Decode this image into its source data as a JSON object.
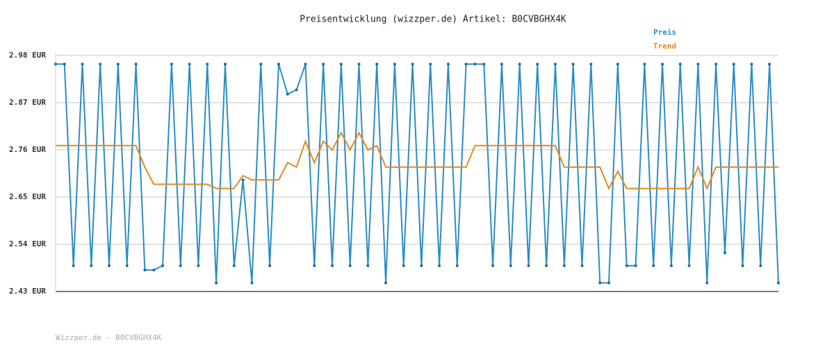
{
  "chart_data": {
    "type": "line",
    "title": "Preisentwicklung (wizzper.de) Artikel: B0CVBGHX4K",
    "footer": "Wizzper.de - B0CVBGHX4K",
    "legend": "top-right",
    "grid": true,
    "categories": [
      null,
      null,
      null,
      null,
      null,
      null,
      null,
      null,
      null,
      null,
      null,
      null,
      null,
      null,
      null,
      null,
      null,
      null,
      null,
      null,
      null,
      null,
      null,
      null,
      null,
      null,
      null,
      null,
      null,
      null,
      null,
      null,
      null,
      null,
      null,
      null,
      null,
      null,
      null,
      null,
      null,
      null,
      null,
      null,
      null,
      null,
      null,
      null,
      null,
      null,
      null,
      null,
      null,
      null,
      null,
      null,
      null,
      null,
      null,
      null,
      null,
      null,
      null,
      null,
      null,
      null,
      null,
      null,
      null,
      null,
      null,
      null,
      null,
      null,
      null,
      null,
      null,
      null,
      null,
      null,
      null,
      null
    ],
    "ylim": [
      2.43,
      2.98
    ],
    "yticks": [
      {
        "value": 2.43,
        "label": "2.43 EUR"
      },
      {
        "value": 2.54,
        "label": "2.54 EUR"
      },
      {
        "value": 2.65,
        "label": "2.65 EUR"
      },
      {
        "value": 2.76,
        "label": "2.76 EUR"
      },
      {
        "value": 2.87,
        "label": "2.87 EUR"
      },
      {
        "value": 2.98,
        "label": "2.98 EUR"
      }
    ],
    "series": [
      {
        "name": "Preis",
        "color": "#2b8cc4",
        "markers": true,
        "values": [
          2.96,
          2.96,
          2.49,
          2.96,
          2.49,
          2.96,
          2.49,
          2.96,
          2.49,
          2.96,
          2.48,
          2.48,
          2.49,
          2.96,
          2.49,
          2.96,
          2.49,
          2.96,
          2.45,
          2.96,
          2.49,
          2.69,
          2.45,
          2.96,
          2.49,
          2.96,
          2.89,
          2.9,
          2.96,
          2.49,
          2.96,
          2.49,
          2.96,
          2.49,
          2.96,
          2.49,
          2.96,
          2.45,
          2.96,
          2.49,
          2.96,
          2.49,
          2.96,
          2.49,
          2.96,
          2.49,
          2.96,
          2.96,
          2.96,
          2.49,
          2.96,
          2.49,
          2.96,
          2.49,
          2.96,
          2.49,
          2.96,
          2.49,
          2.96,
          2.49,
          2.96,
          2.45,
          2.45,
          2.96,
          2.49,
          2.49,
          2.96,
          2.49,
          2.96,
          2.49,
          2.96,
          2.49,
          2.96,
          2.45,
          2.96,
          2.52,
          2.96,
          2.49,
          2.96,
          2.49,
          2.96,
          2.45
        ]
      },
      {
        "name": "Trend",
        "color": "#e08a1e",
        "markers": false,
        "values": [
          2.77,
          2.77,
          2.77,
          2.77,
          2.77,
          2.77,
          2.77,
          2.77,
          2.77,
          2.77,
          2.72,
          2.68,
          2.68,
          2.68,
          2.68,
          2.68,
          2.68,
          2.68,
          2.67,
          2.67,
          2.67,
          2.7,
          2.69,
          2.69,
          2.69,
          2.69,
          2.73,
          2.72,
          2.78,
          2.73,
          2.78,
          2.76,
          2.8,
          2.76,
          2.8,
          2.76,
          2.77,
          2.72,
          2.72,
          2.72,
          2.72,
          2.72,
          2.72,
          2.72,
          2.72,
          2.72,
          2.72,
          2.77,
          2.77,
          2.77,
          2.77,
          2.77,
          2.77,
          2.77,
          2.77,
          2.77,
          2.77,
          2.72,
          2.72,
          2.72,
          2.72,
          2.72,
          2.67,
          2.71,
          2.67,
          2.67,
          2.67,
          2.67,
          2.67,
          2.67,
          2.67,
          2.67,
          2.72,
          2.67,
          2.72,
          2.72,
          2.72,
          2.72,
          2.72,
          2.72,
          2.72,
          2.72
        ]
      }
    ]
  }
}
